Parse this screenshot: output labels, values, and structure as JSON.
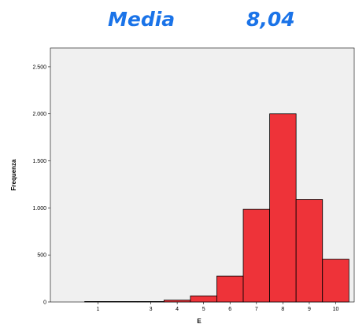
{
  "header": {
    "label": "Media",
    "value": "8,04"
  },
  "colors": {
    "bar_fill": "#ee3339",
    "bar_stroke": "#000000",
    "plot_bg": "#f0f0f0",
    "title": "#1a73e8"
  },
  "chart_data": {
    "type": "bar",
    "xlabel": "E",
    "ylabel": "Frequenza",
    "ylim": [
      0,
      2700
    ],
    "yticks": [
      0,
      500,
      1000,
      1500,
      2000,
      2500
    ],
    "ytick_labels": [
      "0",
      "500",
      "1.000",
      "1.500",
      "2.000",
      "2.500"
    ],
    "xtick_labels": [
      "1",
      "3",
      "4",
      "5",
      "6",
      "7",
      "8",
      "9",
      "10"
    ],
    "grid": false,
    "bins": [
      {
        "from": 0.5,
        "to": 2.5,
        "value": 5
      },
      {
        "from": 2.5,
        "to": 3.5,
        "value": 5
      },
      {
        "from": 3.5,
        "to": 4.5,
        "value": 20
      },
      {
        "from": 4.5,
        "to": 5.5,
        "value": 65
      },
      {
        "from": 5.5,
        "to": 6.5,
        "value": 275
      },
      {
        "from": 6.5,
        "to": 7.5,
        "value": 985
      },
      {
        "from": 7.5,
        "to": 8.5,
        "value": 2000
      },
      {
        "from": 8.5,
        "to": 9.5,
        "value": 1090
      },
      {
        "from": 9.5,
        "to": 10.5,
        "value": 455
      }
    ]
  }
}
